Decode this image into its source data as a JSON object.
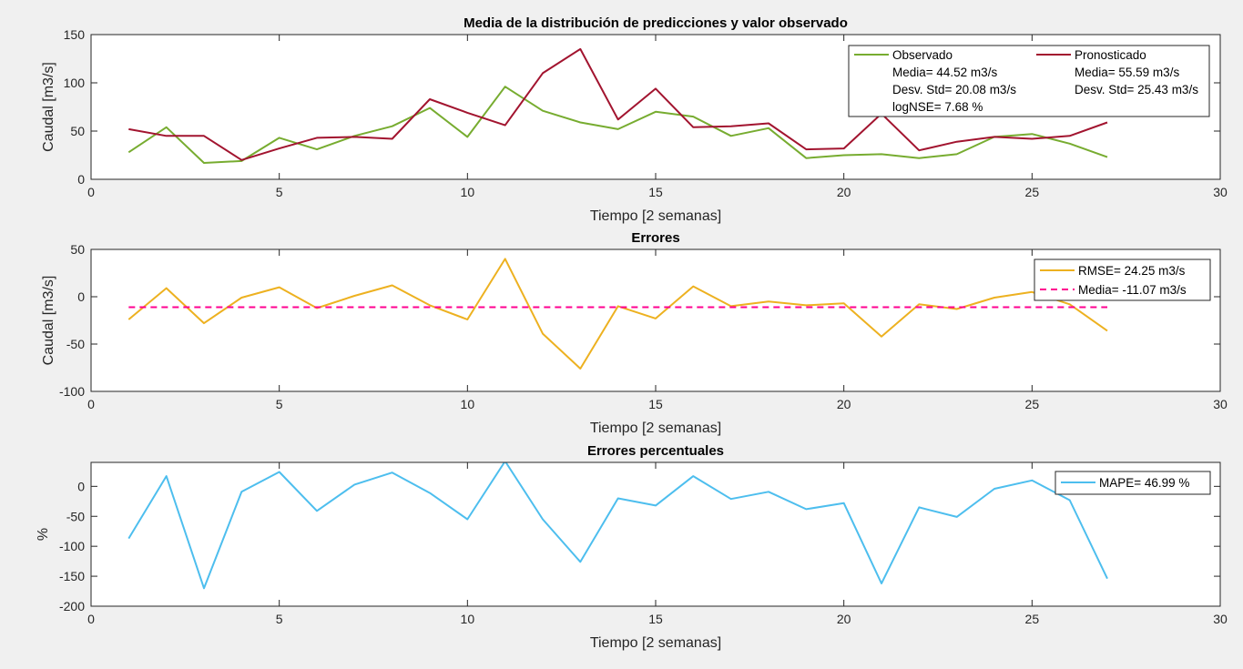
{
  "chart_data": [
    {
      "type": "line",
      "title": "Media de la distribución de predicciones y valor observado",
      "xlabel": "Tiempo [2 semanas]",
      "ylabel": "Caudal [m3/s]",
      "xlim": [
        0,
        30
      ],
      "ylim": [
        0,
        150
      ],
      "xticks": [
        0,
        5,
        10,
        15,
        20,
        25,
        30
      ],
      "yticks": [
        0,
        50,
        100,
        150
      ],
      "grid": false,
      "legend_placement": "top-right",
      "x": [
        1,
        2,
        3,
        4,
        5,
        6,
        7,
        8,
        9,
        10,
        11,
        12,
        13,
        14,
        15,
        16,
        17,
        18,
        19,
        20,
        21,
        22,
        23,
        24,
        25,
        26,
        27
      ],
      "series": [
        {
          "name": "Observado",
          "color": "#77ac30",
          "style": "solid",
          "values": [
            28,
            54,
            17,
            19,
            43,
            31,
            45,
            55,
            74,
            44,
            96,
            71,
            59,
            52,
            70,
            65,
            45,
            53,
            22,
            25,
            26,
            22,
            26,
            44,
            47,
            37,
            23
          ],
          "legend_lines": [
            "Media= 44.52 m3/s",
            "Desv. Std= 20.08 m3/s",
            "logNSE= 7.68 %"
          ]
        },
        {
          "name": "Pronosticado",
          "color": "#a2142f",
          "style": "solid",
          "values": [
            52,
            45,
            45,
            20,
            32,
            43,
            44,
            42,
            83,
            69,
            56,
            110,
            135,
            62,
            94,
            54,
            55,
            58,
            31,
            32,
            68,
            30,
            39,
            44,
            42,
            45,
            59
          ],
          "legend_lines": [
            "Media= 55.59 m3/s",
            "Desv. Std= 25.43 m3/s"
          ]
        }
      ]
    },
    {
      "type": "line",
      "title": "Errores",
      "xlabel": "Tiempo [2 semanas]",
      "ylabel": "Caudal [m3/s]",
      "xlim": [
        0,
        30
      ],
      "ylim": [
        -100,
        50
      ],
      "xticks": [
        0,
        5,
        10,
        15,
        20,
        25,
        30
      ],
      "yticks": [
        -100,
        -50,
        0,
        50
      ],
      "grid": false,
      "legend_placement": "top-right",
      "x": [
        1,
        2,
        3,
        4,
        5,
        6,
        7,
        8,
        9,
        10,
        11,
        12,
        13,
        14,
        15,
        16,
        17,
        18,
        19,
        20,
        21,
        22,
        23,
        24,
        25,
        26,
        27
      ],
      "series": [
        {
          "name": "RMSE= 24.25 m3/s",
          "color": "#edb120",
          "style": "solid",
          "values": [
            -24,
            9,
            -28,
            -1,
            10,
            -12,
            1,
            12,
            -9,
            -24,
            40,
            -39,
            -76,
            -10,
            -23,
            11,
            -10,
            -5,
            -9,
            -7,
            -42,
            -8,
            -13,
            -1,
            5,
            -8,
            -36
          ]
        },
        {
          "name": "Media= -11.07 m3/s",
          "color": "#ff0090",
          "style": "dashed",
          "constant": -11.07
        }
      ]
    },
    {
      "type": "line",
      "title": "Errores percentuales",
      "xlabel": "Tiempo [2 semanas]",
      "ylabel": "%",
      "xlim": [
        0,
        30
      ],
      "ylim": [
        -200,
        40
      ],
      "xticks": [
        0,
        5,
        10,
        15,
        20,
        25,
        30
      ],
      "yticks": [
        -200,
        -150,
        -100,
        -50,
        0
      ],
      "grid": false,
      "legend_placement": "top-right",
      "x": [
        1,
        2,
        3,
        4,
        5,
        6,
        7,
        8,
        9,
        10,
        11,
        12,
        13,
        14,
        15,
        16,
        17,
        18,
        19,
        20,
        21,
        22,
        23,
        24,
        25,
        26,
        27
      ],
      "series": [
        {
          "name": "MAPE= 46.99 %",
          "color": "#4dbeee",
          "style": "solid",
          "values": [
            -87,
            17,
            -170,
            -9,
            24,
            -41,
            3,
            23,
            -11,
            -55,
            42,
            -55,
            -126,
            -20,
            -32,
            17,
            -21,
            -9,
            -38,
            -28,
            -162,
            -35,
            -51,
            -4,
            10,
            -23,
            -154
          ]
        }
      ]
    }
  ]
}
